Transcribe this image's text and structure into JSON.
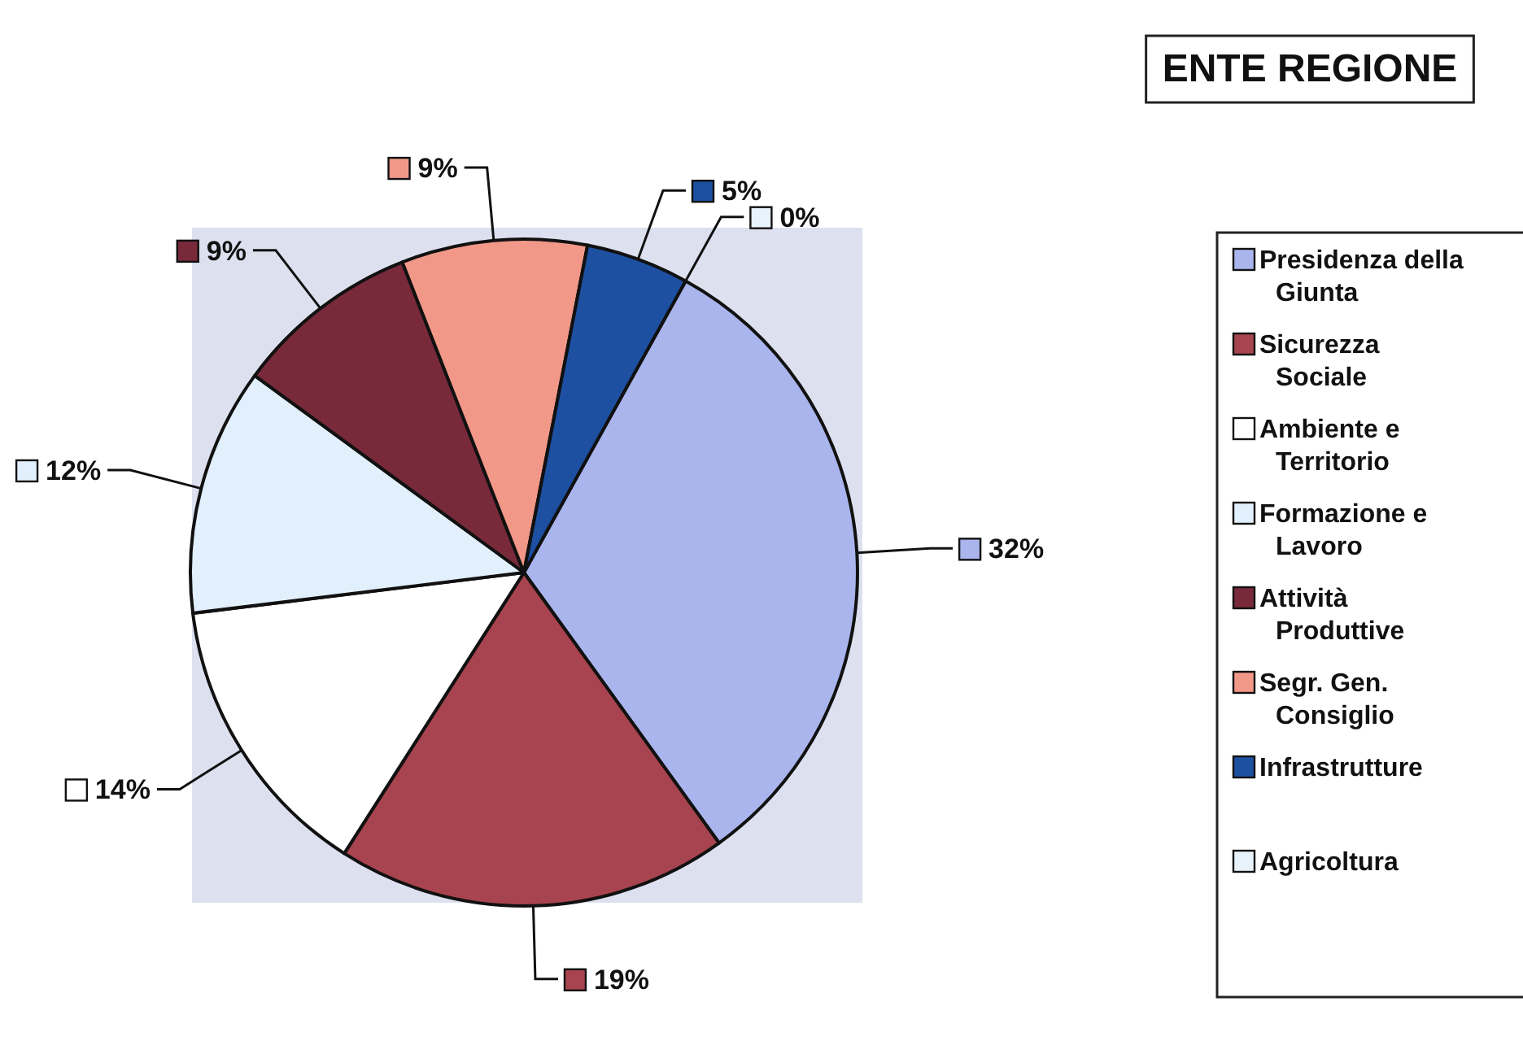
{
  "chart_data": {
    "type": "pie",
    "title": "ENTE REGIONE",
    "categories": [
      "Presidenza della Giunta",
      "Sicurezza Sociale",
      "Ambiente e Territorio",
      "Formazione e Lavoro",
      "Attività Produttive",
      "Segr. Gen. Consiglio",
      "Infrastrutture",
      "Agricoltura"
    ],
    "values": [
      32,
      19,
      14,
      12,
      9,
      9,
      5,
      0
    ],
    "colors": [
      "#a9b5ec",
      "#a8444f",
      "#ffffff",
      "#e2effc",
      "#782a3a",
      "#f29888",
      "#1e50a2",
      "#e8f2fb"
    ],
    "value_labels": [
      "32%",
      "19%",
      "14%",
      "12%",
      "9%",
      "9%",
      "5%",
      "0%"
    ],
    "legend": "right"
  }
}
